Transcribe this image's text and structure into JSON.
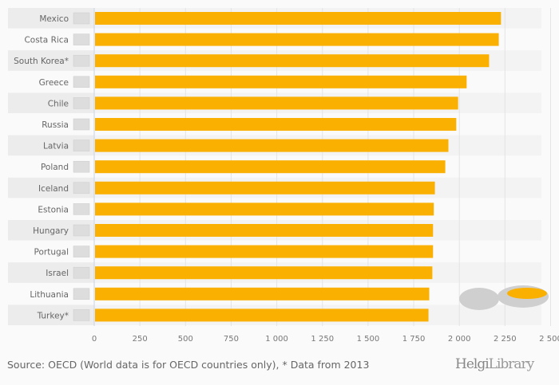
{
  "chart_data": {
    "type": "bar",
    "orientation": "horizontal",
    "categories": [
      "Mexico",
      "Costa Rica",
      "South Korea*",
      "Greece",
      "Chile",
      "Russia",
      "Latvia",
      "Poland",
      "Iceland",
      "Estonia",
      "Hungary",
      "Portugal",
      "Israel",
      "Lithuania",
      "Turkey*"
    ],
    "values": [
      2228,
      2216,
      2163,
      2040,
      1993,
      1983,
      1940,
      1923,
      1866,
      1860,
      1856,
      1856,
      1852,
      1835,
      1831
    ],
    "xlim": [
      0,
      2500
    ],
    "xticks": [
      0,
      250,
      500,
      750,
      1000,
      1250,
      1500,
      1750,
      2000,
      2250,
      2500
    ],
    "xtick_labels": [
      "0",
      "250",
      "500",
      "750",
      "1 000",
      "1 250",
      "1 500",
      "1 750",
      "2 000",
      "2 250",
      "2 500"
    ],
    "grid": true,
    "bar_color": "#fab000"
  },
  "footer": {
    "source": "Source: OECD (World data is for OECD countries only), * Data from 2013",
    "logo_a": "Helgi",
    "logo_b": "Library"
  }
}
